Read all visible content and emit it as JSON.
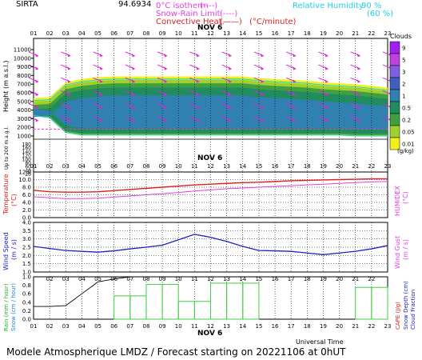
{
  "header": {
    "station": "SIRTA",
    "coords": "94.6934",
    "legend": {
      "isotherm": "0°C isotherm",
      "isotherm_key": "(----)",
      "snow_rain": "Snow-Rain Limit",
      "snow_rain_key": "(----)",
      "convective": "Convective Heat.",
      "convective_key": "(——)",
      "convective_unit": "(°C/minute)",
      "rh": "Relative Humidity",
      "rh_90": "90 %",
      "rh_60": "(60 %)"
    }
  },
  "axes": {
    "date_label": "NOV  6",
    "time_label": "Universal Time",
    "hours": [
      "01",
      "02",
      "03",
      "04",
      "05",
      "06",
      "07",
      "08",
      "09",
      "10",
      "11",
      "12",
      "13",
      "14",
      "15",
      "16",
      "17",
      "18",
      "19",
      "20",
      "21",
      "22",
      "23"
    ]
  },
  "panels": {
    "cloud": {
      "ylabel": "Height (m a.s.l.)",
      "ylabel2": "Up to 200 m a.g.l.",
      "yticks_upper": [
        "11000",
        "10000",
        "9000",
        "8000",
        "7000",
        "6000",
        "5000",
        "4000",
        "3000",
        "2000",
        "1000"
      ],
      "yticks_lower": [
        "180",
        "160",
        "140",
        "120",
        "100",
        "80",
        "60",
        "40",
        "20"
      ],
      "colorbar": {
        "title": "Clouds",
        "unit": "(g/kg)",
        "levels": [
          "9",
          "5",
          "3",
          "2",
          "1",
          "0.5",
          "0.2",
          "0.05",
          "0.01"
        ],
        "colors": [
          "#a020f0",
          "#c040e0",
          "#8060e0",
          "#4060c0",
          "#3080b0",
          "#208c60",
          "#40a040",
          "#a0d030",
          "#f0f020"
        ]
      }
    },
    "temperature": {
      "ylabel": "Temperature",
      "yunit": "(°C)",
      "right_label": "HUMIDEX",
      "right_unit": "(°C)",
      "yticks": [
        "12.0",
        "10.0",
        "8.0",
        "6.0",
        "4.0",
        "2.0",
        "0.0"
      ]
    },
    "wind": {
      "ylabel": "Wind Speed",
      "yunit": "(m / s)",
      "right_label": "Wind Gust",
      "right_unit": "(m / s)",
      "yticks": [
        "4.0",
        "3.5",
        "3.0",
        "2.5",
        "2.0",
        "1.5",
        "1.0"
      ]
    },
    "rain": {
      "ylabel1": "Rain (mm / hour)",
      "ylabel2": "Snow (cm / hour)",
      "right1": "CAPE (J/g)",
      "right2": "Snow Depth (cm)",
      "right3": "Cloud Fraction",
      "yticks": [
        "1.0",
        "0.8",
        "0.6",
        "0.4",
        "0.2",
        "0.0"
      ]
    }
  },
  "footer": {
    "title": "Modele Atmospherique LMDZ / Forecast starting on 20221106 at 0hUT"
  },
  "colors": {
    "temperature": "#e02020",
    "humidex": "#e040e0",
    "wind": "#2020c0",
    "rain_bars": "#40d040",
    "cloud_fraction": "#000000",
    "relative_humidity": "#20d0e0",
    "wind_arrows": "#e020e0"
  },
  "chart_data": [
    {
      "type": "area",
      "title": "Clouds",
      "ylabel": "Height (m a.s.l.)",
      "x": [
        1,
        2,
        3,
        4,
        5,
        6,
        7,
        8,
        9,
        10,
        11,
        12,
        13,
        14,
        15,
        16,
        17,
        18,
        19,
        20,
        21,
        22,
        23
      ],
      "cloud_top_m": [
        4800,
        4900,
        6600,
        7000,
        7200,
        7300,
        7300,
        7300,
        7300,
        7300,
        7300,
        7300,
        7300,
        7300,
        7100,
        7000,
        6900,
        6800,
        6600,
        6500,
        6400,
        6200,
        6000
      ],
      "cloud_base_m": [
        3500,
        3200,
        1500,
        1200,
        1200,
        1200,
        1200,
        1200,
        1200,
        1200,
        1200,
        1200,
        1200,
        1200,
        1200,
        1200,
        1200,
        1200,
        1200,
        1200,
        1100,
        1100,
        1100
      ],
      "wind_direction": "south-westerly to westerly (arrows pointing to the south-east)"
    },
    {
      "type": "line",
      "title": "Temperature",
      "x": [
        1,
        2,
        3,
        4,
        5,
        6,
        7,
        8,
        9,
        10,
        11,
        12,
        13,
        14,
        15,
        16,
        17,
        18,
        19,
        20,
        21,
        22,
        23
      ],
      "series": [
        {
          "name": "Temperature",
          "values": [
            7.2,
            6.8,
            6.7,
            6.7,
            6.8,
            7.1,
            7.4,
            7.7,
            8.0,
            8.3,
            8.6,
            8.8,
            9.0,
            9.2,
            9.3,
            9.5,
            9.7,
            9.8,
            9.9,
            10.0,
            10.1,
            10.2,
            10.2
          ]
        },
        {
          "name": "HUMIDEX",
          "values": [
            5.5,
            5.2,
            5.0,
            5.0,
            5.1,
            5.4,
            5.7,
            6.0,
            6.3,
            6.6,
            7.0,
            7.3,
            7.6,
            7.8,
            8.0,
            8.2,
            8.4,
            8.6,
            8.8,
            9.0,
            9.2,
            9.4,
            9.5
          ]
        }
      ],
      "ylim": [
        0,
        12
      ]
    },
    {
      "type": "line",
      "title": "Wind Speed",
      "x": [
        1,
        2,
        3,
        4,
        5,
        6,
        7,
        8,
        9,
        10,
        11,
        12,
        13,
        14,
        15,
        16,
        17,
        18,
        19,
        20,
        21,
        22,
        23
      ],
      "series": [
        {
          "name": "Wind Speed",
          "values": [
            2.55,
            2.42,
            2.3,
            2.25,
            2.2,
            2.28,
            2.4,
            2.5,
            2.62,
            2.95,
            3.28,
            3.1,
            2.85,
            2.55,
            2.3,
            2.28,
            2.25,
            2.15,
            2.05,
            2.15,
            2.25,
            2.4,
            2.6
          ]
        }
      ],
      "ylim": [
        1,
        4
      ]
    },
    {
      "type": "bar",
      "title": "Rain",
      "x": [
        1,
        2,
        3,
        4,
        5,
        6,
        7,
        8,
        9,
        10,
        11,
        12,
        13,
        14,
        15,
        16,
        17,
        18,
        19,
        20,
        21,
        22,
        23
      ],
      "series": [
        {
          "name": "Rain",
          "values": [
            0,
            0,
            0,
            0,
            0,
            0.55,
            0.55,
            0.82,
            0.82,
            0.42,
            0.42,
            0.85,
            0.85,
            0.85,
            0,
            0,
            0,
            0,
            0,
            0,
            0.75,
            0.75,
            0.75
          ]
        },
        {
          "name": "Cloud Fraction",
          "values": [
            0.3,
            0.3,
            0.32,
            0.6,
            0.88,
            0.95,
            1.0,
            1.0,
            1.0,
            1.0,
            1.0,
            1.0,
            1.0,
            1.0,
            1.0,
            1.0,
            1.0,
            1.0,
            1.0,
            1.0,
            1.0,
            1.0,
            1.0
          ]
        }
      ],
      "ylim": [
        0,
        1
      ]
    }
  ]
}
